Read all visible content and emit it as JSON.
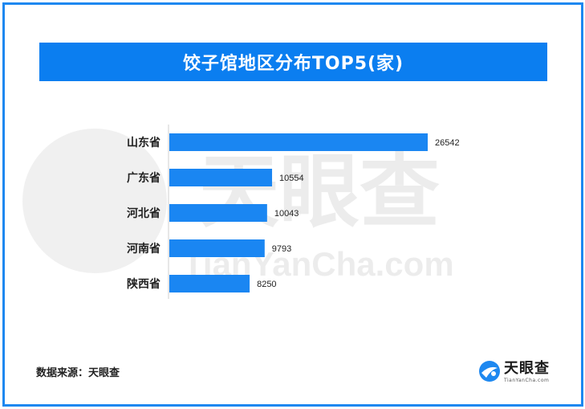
{
  "header": {
    "title": "饺子馆地区分布TOP5(家)"
  },
  "watermark": {
    "brand_cn": "天眼查",
    "brand_en": "TianYanCha.com"
  },
  "footer": {
    "source": "数据来源：天眼查"
  },
  "logo": {
    "name_cn": "天眼查",
    "name_en": "TianYanCha.com"
  },
  "colors": {
    "accent": "#0b7ef0",
    "bar": "#1a86f2",
    "frame": "#1e88f0"
  },
  "chart_data": {
    "type": "bar",
    "orientation": "horizontal",
    "categories": [
      "山东省",
      "广东省",
      "河北省",
      "河南省",
      "陕西省"
    ],
    "values": [
      26542,
      10554,
      10043,
      9793,
      8250
    ],
    "data_labels": [
      "26542",
      "10554",
      "10043",
      "9793",
      "8250"
    ],
    "title": "饺子馆地区分布TOP5(家)",
    "xlim": [
      0,
      26542
    ],
    "grid": false,
    "legend": "none"
  }
}
